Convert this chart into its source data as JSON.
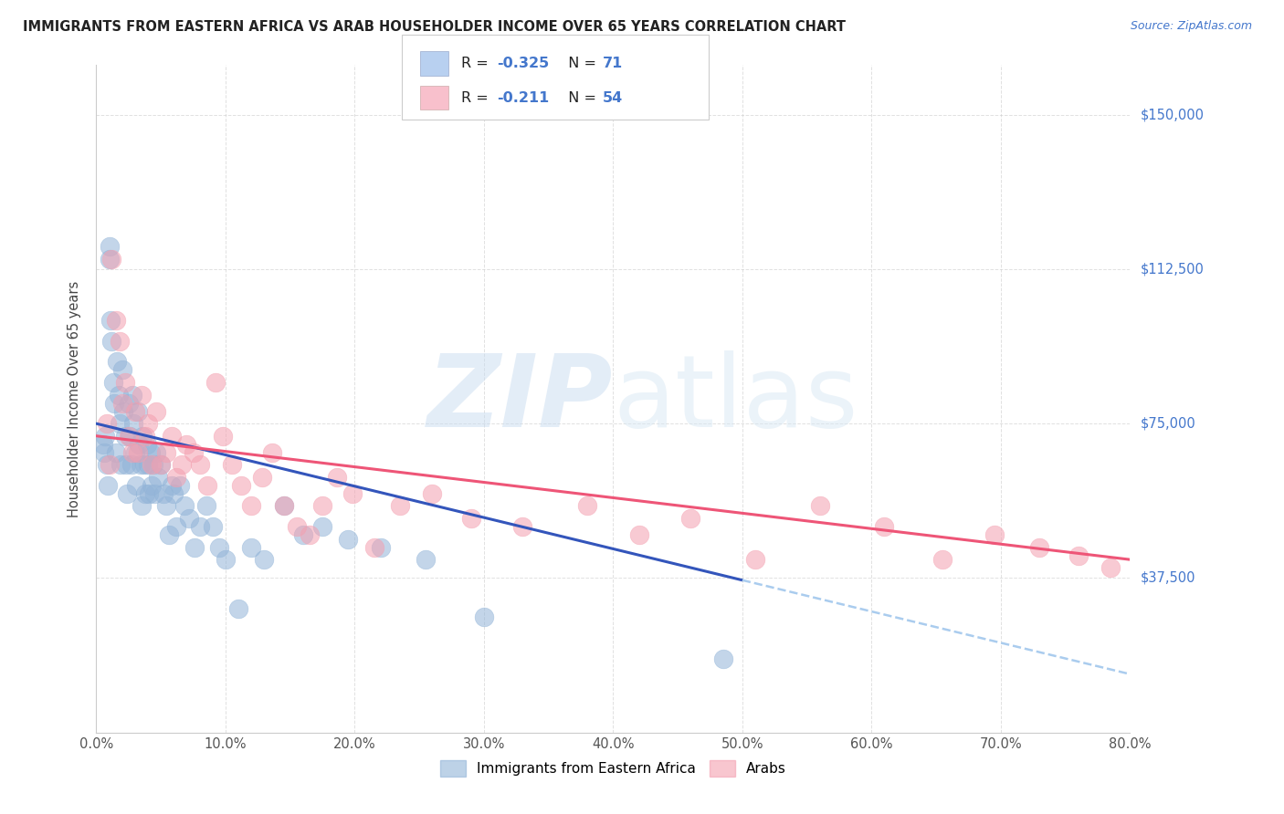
{
  "title": "IMMIGRANTS FROM EASTERN AFRICA VS ARAB HOUSEHOLDER INCOME OVER 65 YEARS CORRELATION CHART",
  "source": "Source: ZipAtlas.com",
  "ylabel": "Householder Income Over 65 years",
  "xlabel_ticks": [
    "0.0%",
    "10.0%",
    "20.0%",
    "30.0%",
    "40.0%",
    "50.0%",
    "60.0%",
    "70.0%",
    "80.0%"
  ],
  "ytick_labels": [
    "$37,500",
    "$75,000",
    "$112,500",
    "$150,000"
  ],
  "ytick_values": [
    37500,
    75000,
    112500,
    150000
  ],
  "xlim": [
    0.0,
    0.8
  ],
  "ylim": [
    0,
    162000
  ],
  "r_eastern_africa": -0.325,
  "n_eastern_africa": 71,
  "r_arabs": -0.211,
  "n_arabs": 54,
  "color_eastern_africa": "#92B4D8",
  "color_arabs": "#F4A0B0",
  "trendline_color_eastern_africa": "#3355BB",
  "trendline_color_arabs": "#EE5577",
  "trendline_dashed_color": "#AACCEE",
  "background_color": "#FFFFFF",
  "grid_color": "#CCCCCC",
  "legend_box_color_eastern_africa": "#B8D0F0",
  "legend_box_color_arabs": "#F8C0CC",
  "eastern_africa_x": [
    0.005,
    0.006,
    0.007,
    0.008,
    0.009,
    0.01,
    0.01,
    0.011,
    0.012,
    0.013,
    0.014,
    0.015,
    0.016,
    0.017,
    0.018,
    0.019,
    0.02,
    0.021,
    0.022,
    0.023,
    0.024,
    0.025,
    0.026,
    0.027,
    0.028,
    0.029,
    0.03,
    0.031,
    0.032,
    0.033,
    0.034,
    0.035,
    0.036,
    0.037,
    0.038,
    0.039,
    0.04,
    0.041,
    0.042,
    0.043,
    0.044,
    0.045,
    0.046,
    0.048,
    0.05,
    0.052,
    0.054,
    0.056,
    0.058,
    0.06,
    0.062,
    0.065,
    0.068,
    0.072,
    0.076,
    0.08,
    0.085,
    0.09,
    0.095,
    0.1,
    0.11,
    0.12,
    0.13,
    0.145,
    0.16,
    0.175,
    0.195,
    0.22,
    0.255,
    0.3,
    0.485
  ],
  "eastern_africa_y": [
    70000,
    68000,
    72000,
    65000,
    60000,
    115000,
    118000,
    100000,
    95000,
    85000,
    80000,
    68000,
    90000,
    82000,
    75000,
    65000,
    88000,
    78000,
    72000,
    65000,
    58000,
    80000,
    72000,
    65000,
    82000,
    75000,
    68000,
    60000,
    78000,
    70000,
    65000,
    55000,
    72000,
    65000,
    58000,
    70000,
    65000,
    58000,
    68000,
    60000,
    65000,
    58000,
    68000,
    62000,
    65000,
    58000,
    55000,
    48000,
    60000,
    58000,
    50000,
    60000,
    55000,
    52000,
    45000,
    50000,
    55000,
    50000,
    45000,
    42000,
    30000,
    45000,
    42000,
    55000,
    48000,
    50000,
    47000,
    45000,
    42000,
    28000,
    18000
  ],
  "arabs_x": [
    0.008,
    0.01,
    0.012,
    0.015,
    0.018,
    0.02,
    0.022,
    0.025,
    0.028,
    0.03,
    0.032,
    0.035,
    0.038,
    0.04,
    0.043,
    0.046,
    0.05,
    0.054,
    0.058,
    0.062,
    0.066,
    0.07,
    0.075,
    0.08,
    0.086,
    0.092,
    0.098,
    0.105,
    0.112,
    0.12,
    0.128,
    0.136,
    0.145,
    0.155,
    0.165,
    0.175,
    0.186,
    0.198,
    0.215,
    0.235,
    0.26,
    0.29,
    0.33,
    0.38,
    0.42,
    0.46,
    0.51,
    0.56,
    0.61,
    0.655,
    0.695,
    0.73,
    0.76,
    0.785
  ],
  "arabs_y": [
    75000,
    65000,
    115000,
    100000,
    95000,
    80000,
    85000,
    72000,
    68000,
    78000,
    68000,
    82000,
    72000,
    75000,
    65000,
    78000,
    65000,
    68000,
    72000,
    62000,
    65000,
    70000,
    68000,
    65000,
    60000,
    85000,
    72000,
    65000,
    60000,
    55000,
    62000,
    68000,
    55000,
    50000,
    48000,
    55000,
    62000,
    58000,
    45000,
    55000,
    58000,
    52000,
    50000,
    55000,
    48000,
    52000,
    42000,
    55000,
    50000,
    42000,
    48000,
    45000,
    43000,
    40000
  ]
}
